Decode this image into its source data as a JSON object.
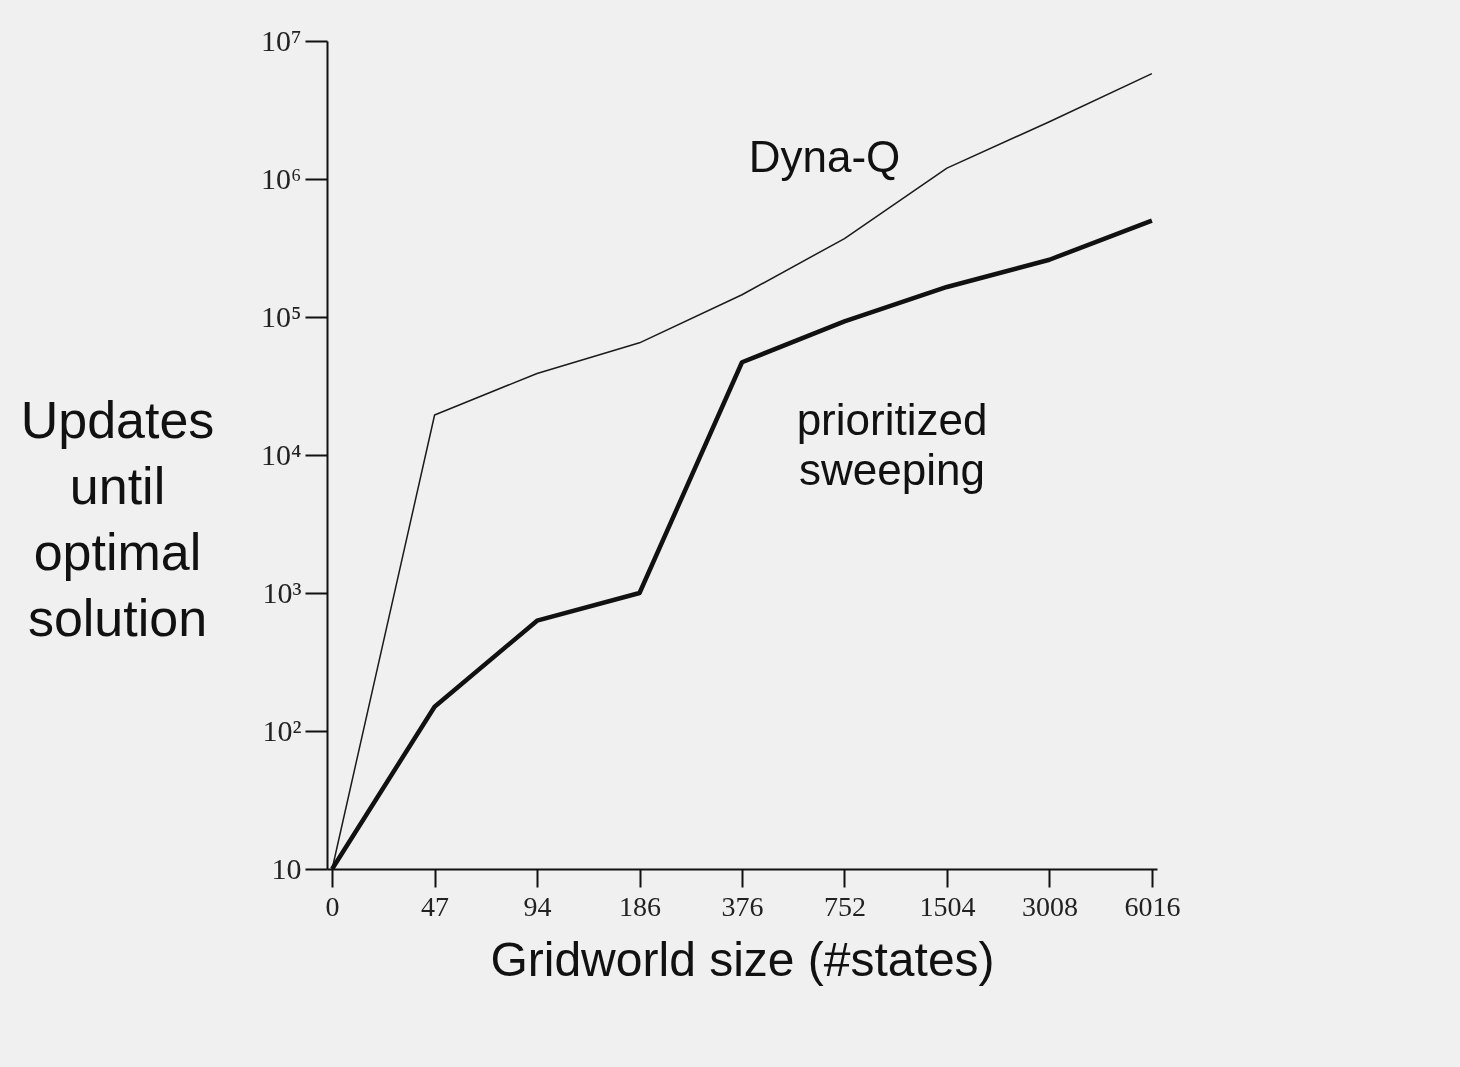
{
  "chart_data": {
    "type": "line",
    "xlabel": "Gridworld size (#states)",
    "ylabel": "Updates until optimal solution",
    "categories": [
      "0",
      "47",
      "94",
      "186",
      "376",
      "752",
      "1504",
      "3008",
      "6016"
    ],
    "series": [
      {
        "name": "Dyna-Q",
        "color": "#1a1a1a",
        "values": [
          10,
          19500,
          39000,
          65000,
          145000,
          370000,
          1200000,
          2600000,
          5800000
        ]
      },
      {
        "name": "prioritized sweeping",
        "color": "#111111",
        "values": [
          10,
          150,
          630,
          1000,
          47000,
          93000,
          165000,
          260000,
          500000
        ]
      }
    ],
    "log": "y",
    "ylim": [
      10,
      10000000
    ],
    "yticks": [
      10,
      {
        "value": 100,
        "label": "10²"
      },
      {
        "value": 1000,
        "label": "10³"
      },
      {
        "value": 10000,
        "label": "10⁴"
      },
      {
        "value": 100000,
        "label": "10⁵"
      },
      {
        "value": 1000000,
        "label": "10⁶"
      },
      {
        "value": 10000000,
        "label": "10⁷"
      }
    ],
    "grid": false,
    "marker": "none",
    "line_style": "solid"
  }
}
